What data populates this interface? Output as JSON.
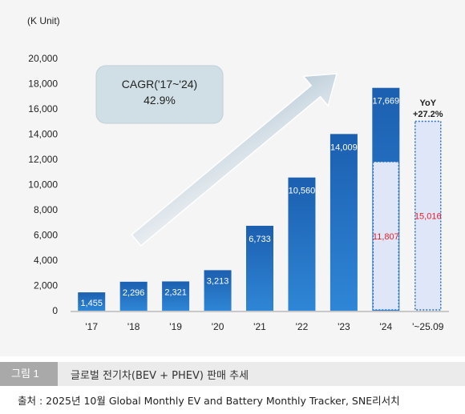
{
  "chart_data": {
    "type": "bar",
    "unit_label": "(K Unit)",
    "categories": [
      "'17",
      "'18",
      "'19",
      "'20",
      "'21",
      "'22",
      "'23",
      "'24",
      "'~25.09"
    ],
    "series": [
      {
        "values": [
          1455,
          2296,
          2321,
          3213,
          6733,
          10560,
          14009,
          17669,
          null
        ]
      },
      {
        "values": [
          null,
          null,
          null,
          null,
          null,
          null,
          null,
          11807,
          15016
        ]
      }
    ],
    "value_labels": [
      "1,455",
      "2,296",
      "2,321",
      "3,213",
      "6,733",
      "10,560",
      "14,009",
      "17,669"
    ],
    "ytd_labels": [
      "11,807",
      "15,016"
    ],
    "ylim": [
      0,
      20000
    ],
    "yticks": [
      0,
      2000,
      4000,
      6000,
      8000,
      10000,
      12000,
      14000,
      16000,
      18000,
      20000
    ],
    "ytick_labels": [
      "0",
      "2,000",
      "4,000",
      "6,000",
      "8,000",
      "10,000",
      "12,000",
      "14,000",
      "16,000",
      "18,000",
      "20,000"
    ],
    "annotations": {
      "cagr_title": "CAGR('17~'24)",
      "cagr_value": "42.9%",
      "yoy_title": "YoY",
      "yoy_value": "+27.2%"
    },
    "colors": {
      "bar": "#1a63b6",
      "ytd_fill": "#dfe6f7",
      "ytd_border": "#2a6fc4",
      "ytd_text": "#e8202a"
    }
  },
  "caption": {
    "tag": "그림 1",
    "text": "글로벌 전기차(BEV + PHEV) 판매 추세"
  },
  "source": "출처 : 2025년 10월 Global Monthly EV and Battery Monthly Tracker, SNE리서치"
}
